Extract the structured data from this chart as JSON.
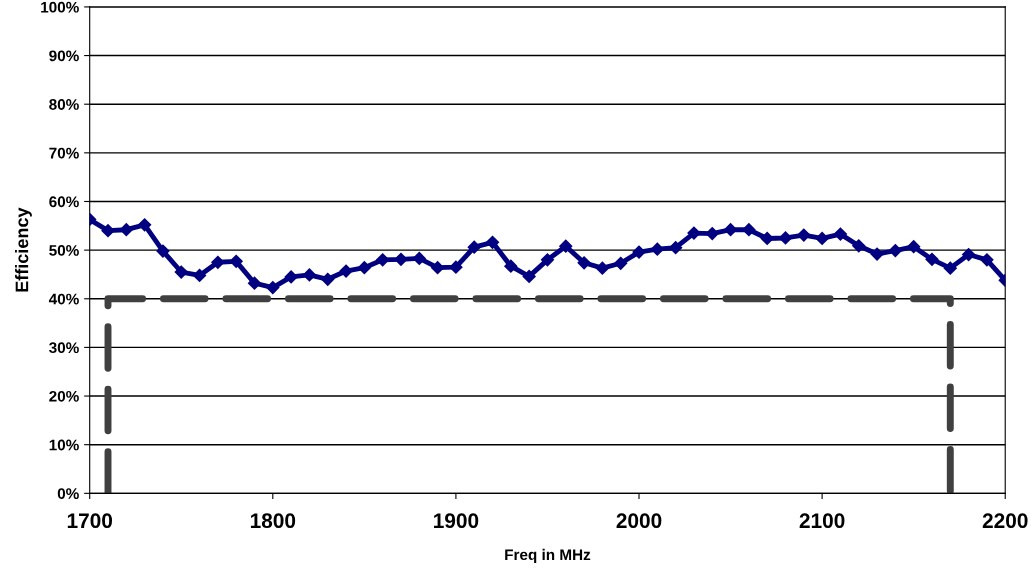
{
  "chart_data": {
    "type": "line",
    "xlabel": "Freq in MHz",
    "ylabel": "Efficiency",
    "xlim": [
      1700,
      2200
    ],
    "xticks": [
      1700,
      1800,
      1900,
      2000,
      2100,
      2200
    ],
    "ylim": [
      0,
      100
    ],
    "yticks": [
      {
        "value": 0,
        "label": "0%"
      },
      {
        "value": 10,
        "label": "10%"
      },
      {
        "value": 20,
        "label": "20%"
      },
      {
        "value": 30,
        "label": "30%"
      },
      {
        "value": 40,
        "label": "40%"
      },
      {
        "value": 50,
        "label": "50%"
      },
      {
        "value": 60,
        "label": "60%"
      },
      {
        "value": 70,
        "label": "70%"
      },
      {
        "value": 80,
        "label": "80%"
      },
      {
        "value": 90,
        "label": "90%"
      },
      {
        "value": 100,
        "label": "100%"
      }
    ],
    "grid": "y",
    "legend": false,
    "series": [
      {
        "color": "#000080",
        "marker": "diamond",
        "line_style": "solid",
        "x": [
          1700,
          1710,
          1720,
          1730,
          1740,
          1750,
          1760,
          1770,
          1780,
          1790,
          1800,
          1810,
          1820,
          1830,
          1840,
          1850,
          1860,
          1870,
          1880,
          1890,
          1900,
          1910,
          1920,
          1930,
          1940,
          1950,
          1960,
          1970,
          1980,
          1990,
          2000,
          2010,
          2020,
          2030,
          2040,
          2050,
          2060,
          2070,
          2080,
          2090,
          2100,
          2110,
          2120,
          2130,
          2140,
          2150,
          2160,
          2170,
          2180,
          2190,
          2200
        ],
        "values": [
          56.3,
          54,
          54.2,
          55.2,
          49.8,
          45.5,
          44.8,
          47.5,
          47.7,
          43.2,
          42.3,
          44.5,
          44.9,
          44,
          45.7,
          46.4,
          48,
          48.1,
          48.3,
          46.4,
          46.5,
          50.6,
          51.6,
          46.7,
          44.6,
          48,
          50.8,
          47.4,
          46.3,
          47.3,
          49.6,
          50.2,
          50.5,
          53.5,
          53.4,
          54.2,
          54.2,
          52.4,
          52.5,
          53.1,
          52.4,
          53.3,
          50.9,
          49.2,
          49.9,
          50.7,
          48.1,
          46.3,
          49.1,
          48,
          43.8
        ]
      },
      {
        "color": "#404040",
        "marker": "none",
        "line_style": "dashed",
        "x": [
          1710,
          1710,
          2170,
          2170
        ],
        "values": [
          0,
          40,
          40,
          0
        ]
      }
    ]
  }
}
